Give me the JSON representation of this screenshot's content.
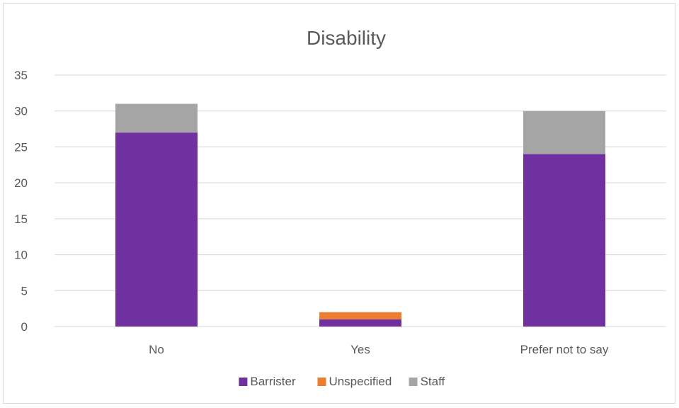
{
  "chart_data": {
    "type": "bar",
    "stacked": true,
    "title": "Disability",
    "xlabel": "",
    "ylabel": "",
    "categories": [
      "No",
      "Yes",
      "Prefer not to say"
    ],
    "series": [
      {
        "name": "Barrister",
        "color": "#7030a0",
        "values": [
          27,
          1,
          24
        ]
      },
      {
        "name": "Unspecified",
        "color": "#ed7d31",
        "values": [
          0,
          1,
          0
        ]
      },
      {
        "name": "Staff",
        "color": "#a5a5a5",
        "values": [
          4,
          0,
          6
        ]
      }
    ],
    "ylim": [
      0,
      35
    ],
    "yticks": [
      0,
      5,
      10,
      15,
      20,
      25,
      30,
      35
    ],
    "grid": true,
    "legend": "bottom"
  }
}
